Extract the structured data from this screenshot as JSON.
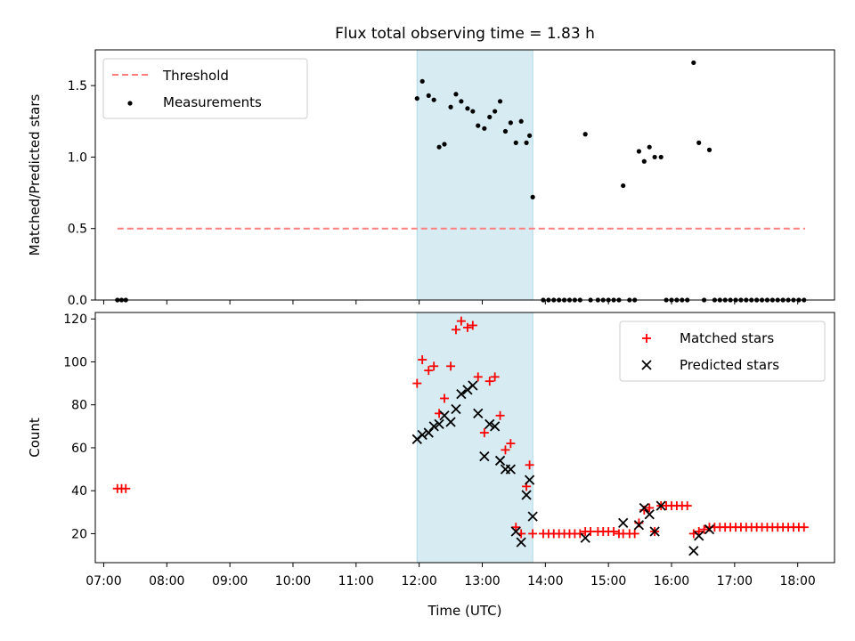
{
  "title": "Flux total observing time = 1.83 h",
  "colors": {
    "threshold": "#ff7f7f",
    "measurements": "#000000",
    "matched": "#ff0000",
    "predicted": "#000000",
    "shade": "#add8e6"
  },
  "chart_data": [
    {
      "type": "scatter",
      "panel": "top",
      "ylabel": "Matched/Predicted stars",
      "ylim": [
        0,
        1.75
      ],
      "xlim": [
        "06:52",
        "18:35"
      ],
      "yticks": [
        0.0,
        0.5,
        1.0,
        1.5
      ],
      "ytick_labels": [
        "0.0",
        "0.5",
        "1.0",
        "1.5"
      ],
      "legend_location": "upper-left",
      "shaded_span": [
        "11:58",
        "13:48"
      ],
      "threshold": {
        "name": "Threshold",
        "value": 0.5,
        "x_start": "07:13",
        "x_end": "18:07"
      },
      "series": [
        {
          "name": "Measurements",
          "marker": "dot",
          "points": [
            [
              "07:13",
              0
            ],
            [
              "07:17",
              0
            ],
            [
              "07:21",
              0
            ],
            [
              "11:58",
              1.41
            ],
            [
              "12:03",
              1.53
            ],
            [
              "12:09",
              1.43
            ],
            [
              "12:14",
              1.4
            ],
            [
              "12:19",
              1.07
            ],
            [
              "12:24",
              1.09
            ],
            [
              "12:30",
              1.35
            ],
            [
              "12:35",
              1.44
            ],
            [
              "12:40",
              1.39
            ],
            [
              "12:46",
              1.34
            ],
            [
              "12:51",
              1.32
            ],
            [
              "12:56",
              1.22
            ],
            [
              "13:02",
              1.2
            ],
            [
              "13:07",
              1.28
            ],
            [
              "13:12",
              1.32
            ],
            [
              "13:17",
              1.39
            ],
            [
              "13:22",
              1.18
            ],
            [
              "13:27",
              1.24
            ],
            [
              "13:32",
              1.1
            ],
            [
              "13:37",
              1.25
            ],
            [
              "13:42",
              1.1
            ],
            [
              "13:45",
              1.15
            ],
            [
              "13:48",
              0.72
            ],
            [
              "13:58",
              0
            ],
            [
              "14:03",
              0
            ],
            [
              "14:08",
              0
            ],
            [
              "14:13",
              0
            ],
            [
              "14:18",
              0
            ],
            [
              "14:23",
              0
            ],
            [
              "14:28",
              0
            ],
            [
              "14:33",
              0
            ],
            [
              "14:38",
              1.16
            ],
            [
              "14:43",
              0
            ],
            [
              "14:50",
              0
            ],
            [
              "14:55",
              0
            ],
            [
              "15:00",
              0
            ],
            [
              "15:05",
              0
            ],
            [
              "15:10",
              0
            ],
            [
              "15:14",
              0.8
            ],
            [
              "15:20",
              0
            ],
            [
              "15:25",
              0
            ],
            [
              "15:29",
              1.04
            ],
            [
              "15:34",
              0.97
            ],
            [
              "15:39",
              1.07
            ],
            [
              "15:44",
              1.0
            ],
            [
              "15:50",
              1.0
            ],
            [
              "15:55",
              0
            ],
            [
              "16:00",
              0
            ],
            [
              "16:05",
              0
            ],
            [
              "16:10",
              0
            ],
            [
              "16:15",
              0
            ],
            [
              "16:21",
              1.66
            ],
            [
              "16:26",
              1.1
            ],
            [
              "16:31",
              0
            ],
            [
              "16:36",
              1.05
            ],
            [
              "16:41",
              0
            ],
            [
              "16:46",
              0
            ],
            [
              "16:51",
              0
            ],
            [
              "16:56",
              0
            ],
            [
              "17:01",
              0
            ],
            [
              "17:06",
              0
            ],
            [
              "17:11",
              0
            ],
            [
              "17:16",
              0
            ],
            [
              "17:21",
              0
            ],
            [
              "17:26",
              0
            ],
            [
              "17:31",
              0
            ],
            [
              "17:36",
              0
            ],
            [
              "17:41",
              0
            ],
            [
              "17:46",
              0
            ],
            [
              "17:51",
              0
            ],
            [
              "17:56",
              0
            ],
            [
              "18:01",
              0
            ],
            [
              "18:06",
              0
            ]
          ]
        }
      ]
    },
    {
      "type": "scatter",
      "panel": "bottom",
      "xlabel": "Time (UTC)",
      "ylabel": "Count",
      "ylim": [
        6.5,
        123
      ],
      "xlim": [
        "06:52",
        "18:35"
      ],
      "xticks": [
        "07:00",
        "08:00",
        "09:00",
        "10:00",
        "11:00",
        "12:00",
        "13:00",
        "14:00",
        "15:00",
        "16:00",
        "17:00",
        "18:00"
      ],
      "yticks": [
        20,
        40,
        60,
        80,
        100,
        120
      ],
      "ytick_labels": [
        "20",
        "40",
        "60",
        "80",
        "100",
        "120"
      ],
      "legend_location": "upper-right",
      "shaded_span": [
        "11:58",
        "13:48"
      ],
      "series": [
        {
          "name": "Matched stars",
          "marker": "plus",
          "points": [
            [
              "07:13",
              41
            ],
            [
              "07:17",
              41
            ],
            [
              "07:21",
              41
            ],
            [
              "11:58",
              90
            ],
            [
              "12:03",
              101
            ],
            [
              "12:09",
              96
            ],
            [
              "12:14",
              98
            ],
            [
              "12:19",
              76
            ],
            [
              "12:24",
              83
            ],
            [
              "12:30",
              98
            ],
            [
              "12:35",
              115
            ],
            [
              "12:40",
              119
            ],
            [
              "12:46",
              116
            ],
            [
              "12:51",
              117
            ],
            [
              "12:56",
              93
            ],
            [
              "13:02",
              67
            ],
            [
              "13:07",
              91
            ],
            [
              "13:12",
              93
            ],
            [
              "13:17",
              75
            ],
            [
              "13:22",
              59
            ],
            [
              "13:27",
              62
            ],
            [
              "13:32",
              23
            ],
            [
              "13:37",
              20
            ],
            [
              "13:42",
              42
            ],
            [
              "13:45",
              52
            ],
            [
              "13:48",
              20
            ],
            [
              "13:58",
              20
            ],
            [
              "14:03",
              20
            ],
            [
              "14:08",
              20
            ],
            [
              "14:13",
              20
            ],
            [
              "14:18",
              20
            ],
            [
              "14:23",
              20
            ],
            [
              "14:28",
              20
            ],
            [
              "14:33",
              20
            ],
            [
              "14:38",
              21
            ],
            [
              "14:43",
              21
            ],
            [
              "14:50",
              21
            ],
            [
              "14:55",
              21
            ],
            [
              "15:00",
              21
            ],
            [
              "15:05",
              21
            ],
            [
              "15:10",
              20
            ],
            [
              "15:14",
              20
            ],
            [
              "15:20",
              20
            ],
            [
              "15:25",
              20
            ],
            [
              "15:29",
              25
            ],
            [
              "15:34",
              31
            ],
            [
              "15:39",
              32
            ],
            [
              "15:44",
              21
            ],
            [
              "15:50",
              33
            ],
            [
              "15:55",
              33
            ],
            [
              "16:00",
              33
            ],
            [
              "16:05",
              33
            ],
            [
              "16:10",
              33
            ],
            [
              "16:15",
              33
            ],
            [
              "16:21",
              20
            ],
            [
              "16:26",
              21
            ],
            [
              "16:31",
              22
            ],
            [
              "16:36",
              23
            ],
            [
              "16:41",
              23
            ],
            [
              "16:46",
              23
            ],
            [
              "16:51",
              23
            ],
            [
              "16:56",
              23
            ],
            [
              "17:01",
              23
            ],
            [
              "17:06",
              23
            ],
            [
              "17:11",
              23
            ],
            [
              "17:16",
              23
            ],
            [
              "17:21",
              23
            ],
            [
              "17:26",
              23
            ],
            [
              "17:31",
              23
            ],
            [
              "17:36",
              23
            ],
            [
              "17:41",
              23
            ],
            [
              "17:46",
              23
            ],
            [
              "17:51",
              23
            ],
            [
              "17:56",
              23
            ],
            [
              "18:01",
              23
            ],
            [
              "18:06",
              23
            ]
          ]
        },
        {
          "name": "Predicted stars",
          "marker": "x",
          "points": [
            [
              "11:58",
              64
            ],
            [
              "12:03",
              66
            ],
            [
              "12:09",
              67
            ],
            [
              "12:14",
              70
            ],
            [
              "12:19",
              71
            ],
            [
              "12:24",
              75
            ],
            [
              "12:30",
              72
            ],
            [
              "12:35",
              78
            ],
            [
              "12:40",
              85
            ],
            [
              "12:46",
              87
            ],
            [
              "12:51",
              89
            ],
            [
              "12:56",
              76
            ],
            [
              "13:02",
              56
            ],
            [
              "13:07",
              71
            ],
            [
              "13:12",
              70
            ],
            [
              "13:17",
              54
            ],
            [
              "13:22",
              50
            ],
            [
              "13:27",
              50
            ],
            [
              "13:32",
              21
            ],
            [
              "13:37",
              16
            ],
            [
              "13:42",
              38
            ],
            [
              "13:45",
              45
            ],
            [
              "13:48",
              28
            ],
            [
              "14:38",
              18
            ],
            [
              "15:14",
              25
            ],
            [
              "15:29",
              24
            ],
            [
              "15:34",
              32
            ],
            [
              "15:39",
              29
            ],
            [
              "15:44",
              21
            ],
            [
              "15:50",
              33
            ],
            [
              "16:21",
              12
            ],
            [
              "16:26",
              19
            ],
            [
              "16:36",
              22
            ]
          ]
        }
      ]
    }
  ]
}
